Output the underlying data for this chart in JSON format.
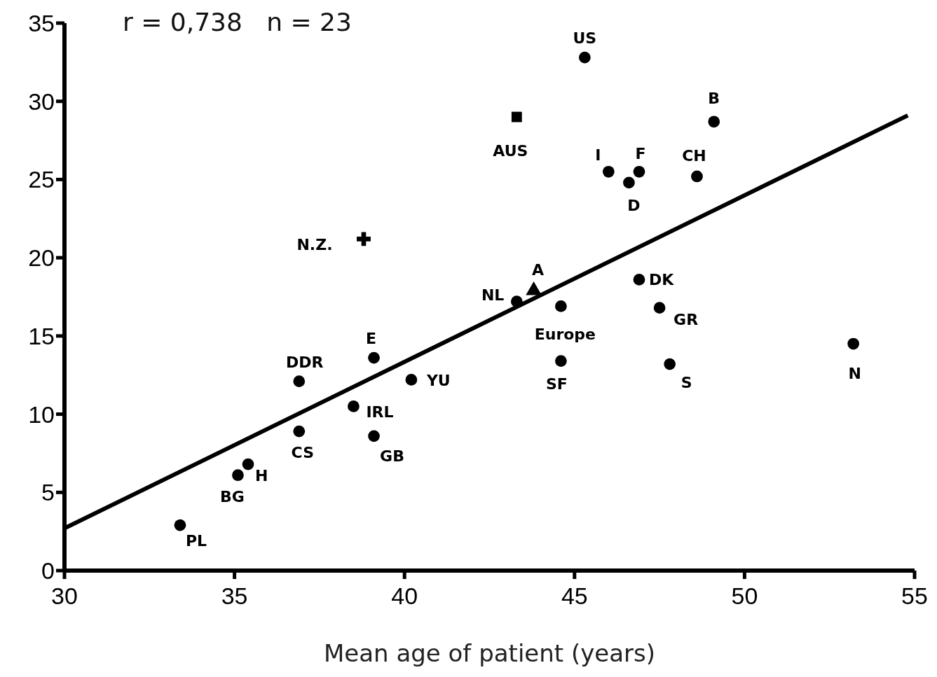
{
  "chart_data": {
    "type": "scatter",
    "xlabel": "Mean age of patient (years)",
    "xlim": [
      30,
      55
    ],
    "xticks": [
      30,
      35,
      40,
      45,
      50,
      55
    ],
    "ylim": [
      0,
      35
    ],
    "yticks": [
      0,
      5,
      10,
      15,
      20,
      25,
      30,
      35
    ],
    "grid": false,
    "series": [
      {
        "marker": "circle",
        "color": "#000000",
        "x": [
          45.3,
          49.1,
          46.0,
          46.9,
          46.6,
          48.6,
          46.9,
          43.3,
          44.6,
          47.5,
          39.1,
          44.6,
          47.8,
          53.2,
          36.9,
          40.2,
          38.5,
          36.9,
          39.1,
          35.4,
          35.1,
          33.4
        ],
        "values": [
          32.8,
          28.7,
          25.5,
          25.5,
          24.8,
          25.2,
          18.6,
          17.2,
          16.9,
          16.8,
          13.6,
          13.4,
          13.2,
          14.5,
          12.1,
          12.2,
          10.5,
          8.9,
          8.6,
          6.8,
          6.1,
          2.9
        ]
      },
      {
        "marker": "square",
        "color": "#000000",
        "x": [
          43.3
        ],
        "values": [
          29.0
        ]
      },
      {
        "marker": "cross",
        "color": "#000000",
        "x": [
          38.8
        ],
        "values": [
          21.2
        ]
      },
      {
        "marker": "triangle",
        "color": "#000000",
        "x": [
          43.8
        ],
        "values": [
          17.9
        ]
      },
      {
        "type": "line",
        "marker": "none",
        "line_style": "solid",
        "color": "#000000",
        "x": [
          30,
          54.8
        ],
        "values": [
          2.7,
          29.1
        ]
      }
    ],
    "annotations": [
      {
        "text": "US",
        "x": 45.3,
        "y": 32.8
      },
      {
        "text": "B",
        "x": 49.1,
        "y": 28.7
      },
      {
        "text": "I",
        "x": 46.0,
        "y": 25.5
      },
      {
        "text": "F",
        "x": 46.9,
        "y": 25.5
      },
      {
        "text": "D",
        "x": 46.6,
        "y": 24.8
      },
      {
        "text": "CH",
        "x": 48.6,
        "y": 25.2
      },
      {
        "text": "DK",
        "x": 46.9,
        "y": 18.6
      },
      {
        "text": "NL",
        "x": 43.3,
        "y": 17.2
      },
      {
        "text": "Europe",
        "x": 44.6,
        "y": 16.9
      },
      {
        "text": "GR",
        "x": 47.5,
        "y": 16.8
      },
      {
        "text": "E",
        "x": 39.1,
        "y": 13.6
      },
      {
        "text": "SF",
        "x": 44.6,
        "y": 13.4
      },
      {
        "text": "S",
        "x": 47.8,
        "y": 13.2
      },
      {
        "text": "N",
        "x": 53.2,
        "y": 14.5
      },
      {
        "text": "DDR",
        "x": 36.9,
        "y": 12.1
      },
      {
        "text": "YU",
        "x": 40.2,
        "y": 12.2
      },
      {
        "text": "IRL",
        "x": 38.5,
        "y": 10.5
      },
      {
        "text": "CS",
        "x": 36.9,
        "y": 8.9
      },
      {
        "text": "GB",
        "x": 39.1,
        "y": 8.6
      },
      {
        "text": "H",
        "x": 35.4,
        "y": 6.8
      },
      {
        "text": "BG",
        "x": 35.1,
        "y": 6.1
      },
      {
        "text": "PL",
        "x": 33.4,
        "y": 2.9
      },
      {
        "text": "AUS",
        "x": 43.3,
        "y": 29.0
      },
      {
        "text": "N.Z.",
        "x": 38.8,
        "y": 21.2
      },
      {
        "text": "A",
        "x": 43.8,
        "y": 17.9
      },
      "r = 0,738   n = 23"
    ]
  }
}
